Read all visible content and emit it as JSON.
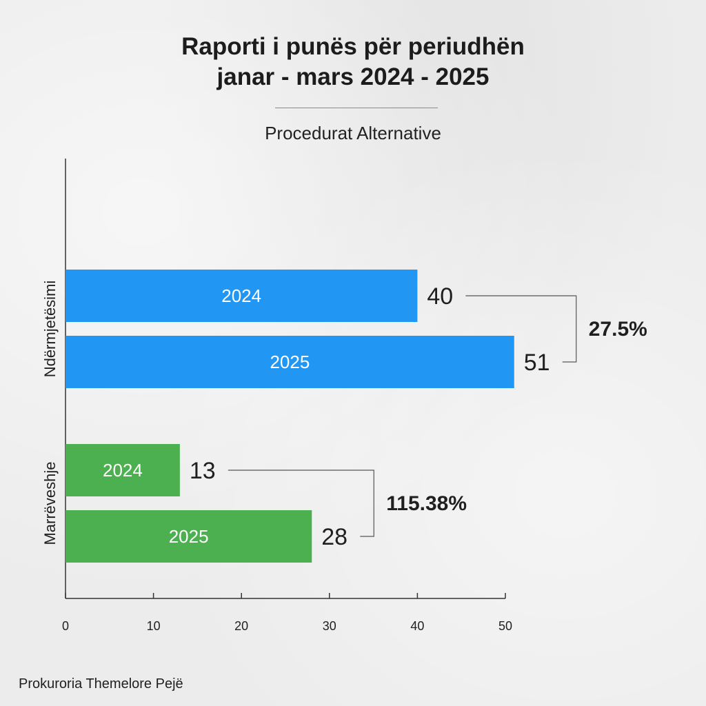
{
  "title_line1": "Raporti i punës për periudhën",
  "title_line2": "janar - mars 2024 - 2025",
  "subtitle": "Procedurat Alternative",
  "footer": "Prokuroria Themelore Pejë",
  "colors": {
    "blue": "#2196f3",
    "green": "#4caf50"
  },
  "chart_data": {
    "type": "bar",
    "orientation": "horizontal",
    "categories": [
      "Ndërmjetësimi",
      "Marrëveshje"
    ],
    "series": [
      {
        "name": "2024",
        "values": [
          40,
          13
        ]
      },
      {
        "name": "2025",
        "values": [
          51,
          28
        ]
      }
    ],
    "changes": [
      "27.5%",
      "115.38%"
    ],
    "x_ticks": [
      0,
      10,
      20,
      30,
      40,
      50
    ],
    "xlim": [
      0,
      50
    ],
    "title": "Raporti i punës për periudhën janar - mars 2024 - 2025",
    "subtitle": "Procedurat Alternative",
    "xlabel": "",
    "ylabel": "",
    "grid": false,
    "legend": "none"
  }
}
